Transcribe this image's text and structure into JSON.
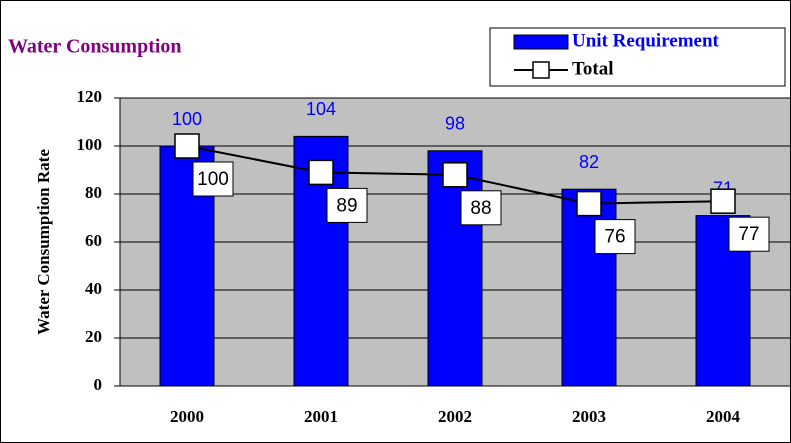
{
  "chart_data": {
    "type": "bar",
    "title": "Water Consumption",
    "y_label": "Water Consumption Rate",
    "categories": [
      "2000",
      "2001",
      "2002",
      "2003",
      "2004"
    ],
    "series": [
      {
        "name": "Unit Requirement",
        "type": "bar",
        "color": "#0000ff",
        "values": [
          100,
          104,
          98,
          82,
          71
        ]
      },
      {
        "name": "Total",
        "type": "line",
        "color": "#000000",
        "values": [
          100,
          89,
          88,
          76,
          77
        ]
      }
    ],
    "ylim": [
      0,
      120
    ],
    "yticks": [
      0,
      20,
      40,
      60,
      80,
      100,
      120
    ],
    "grid": true,
    "legend": "top-right"
  }
}
